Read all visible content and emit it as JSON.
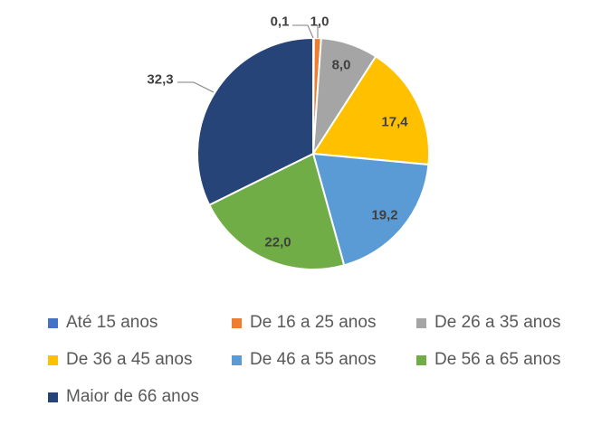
{
  "chart_data": {
    "type": "pie",
    "title": "",
    "categories": [
      "Até 15 anos",
      "De 16 a 25 anos",
      "De 26 a 35 anos",
      "De 36 a 45 anos",
      "De 46 a 55 anos",
      "De 56 a 65 anos",
      "Maior de 66 anos"
    ],
    "values": [
      0.1,
      1.0,
      8.0,
      17.4,
      19.2,
      22.0,
      32.3
    ],
    "data_labels": [
      "0,1",
      "1,0",
      "8,0",
      "17,4",
      "19,2",
      "22,0",
      "32,3"
    ],
    "colors": [
      "#4472C4",
      "#ED7D31",
      "#A5A5A5",
      "#FFC000",
      "#5B9BD5",
      "#70AD47",
      "#264478"
    ],
    "legend_position": "bottom"
  }
}
